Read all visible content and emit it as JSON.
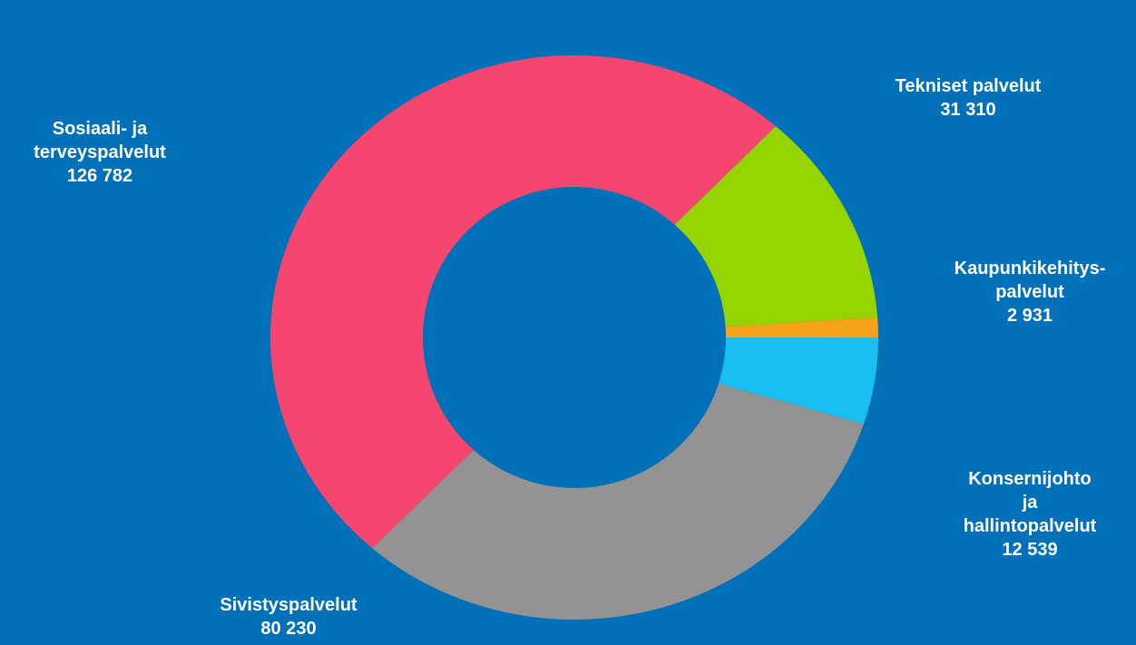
{
  "chart_data": {
    "type": "donut",
    "categories": [
      "Tekniset palvelut",
      "Kaupunkikehitys-\npalvelut",
      "Konsernijohto ja\nhallintopalvelut",
      "Sivistyspalvelut",
      "Sosiaali- ja\nterveyspalvelut"
    ],
    "values": [
      31310,
      2931,
      12539,
      80230,
      126782
    ],
    "value_labels": [
      "31 310",
      "2 931",
      "12 539",
      "80 230",
      "126 782"
    ],
    "colors": [
      "#96d400",
      "#f7a21b",
      "#19bff0",
      "#939393",
      "#f5466f"
    ]
  }
}
